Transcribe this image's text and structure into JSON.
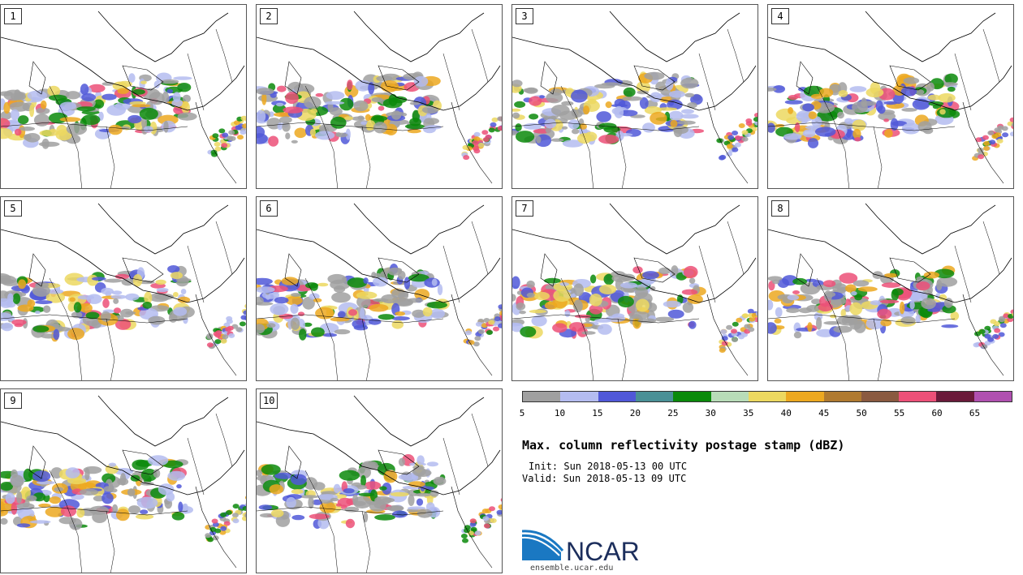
{
  "panels": [
    "1",
    "2",
    "3",
    "4",
    "5",
    "6",
    "7",
    "8",
    "9",
    "10"
  ],
  "colorbar": {
    "colors": [
      "#a0a0a0",
      "#b4bcf0",
      "#5058d8",
      "#4a9096",
      "#0a8a0a",
      "#b8dcb8",
      "#ecd860",
      "#eca820",
      "#b07a30",
      "#8a5a40",
      "#ec5078",
      "#6a1a3a",
      "#b050b0"
    ],
    "ticks": [
      "5",
      "10",
      "15",
      "20",
      "25",
      "30",
      "35",
      "40",
      "45",
      "50",
      "55",
      "60",
      "65"
    ]
  },
  "title": "Max. column reflectivity postage stamp (dBZ)",
  "init": "Init: Sun 2018-05-13 00 UTC",
  "valid": "Valid: Sun 2018-05-13 09 UTC",
  "logo_text": "NCAR",
  "site": "ensemble.ucar.edu"
}
